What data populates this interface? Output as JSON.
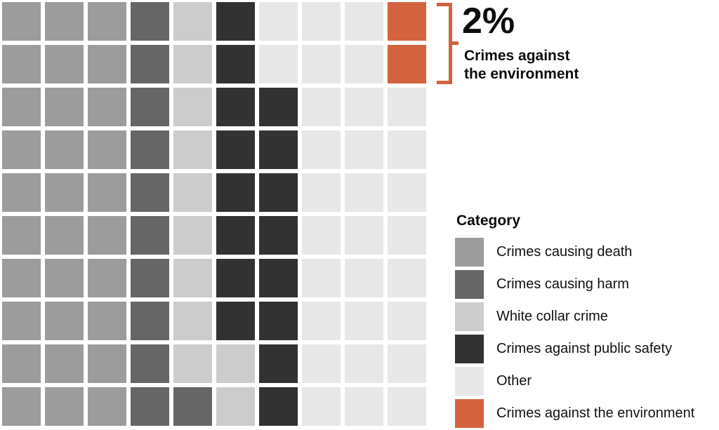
{
  "palette": {
    "crimes_causing_death": "#9c9c9c",
    "crimes_causing_harm": "#666666",
    "white_collar_crime": "#cccccc",
    "crimes_against_public_safety": "#323232",
    "other": "#e7e7e7",
    "crimes_against_environment": "#d3623f"
  },
  "accent_color": "#d3623f",
  "callout": {
    "value": "2%",
    "line1": "Crimes against",
    "line2": "the environment"
  },
  "legend": {
    "title": "Category",
    "items": [
      {
        "label": "Crimes causing death",
        "color_key": "crimes_causing_death"
      },
      {
        "label": "Crimes causing harm",
        "color_key": "crimes_causing_harm"
      },
      {
        "label": "White collar crime",
        "color_key": "white_collar_crime"
      },
      {
        "label": "Crimes against public safety",
        "color_key": "crimes_against_public_safety"
      },
      {
        "label": "Other",
        "color_key": "other"
      },
      {
        "label": "Crimes against the environment",
        "color_key": "crimes_against_environment"
      }
    ]
  },
  "grid": {
    "rows": [
      [
        "crimes_causing_death",
        "crimes_causing_death",
        "crimes_causing_death",
        "crimes_causing_harm",
        "white_collar_crime",
        "crimes_against_public_safety",
        "other",
        "other",
        "other",
        "crimes_against_environment"
      ],
      [
        "crimes_causing_death",
        "crimes_causing_death",
        "crimes_causing_death",
        "crimes_causing_harm",
        "white_collar_crime",
        "crimes_against_public_safety",
        "other",
        "other",
        "other",
        "crimes_against_environment"
      ],
      [
        "crimes_causing_death",
        "crimes_causing_death",
        "crimes_causing_death",
        "crimes_causing_harm",
        "white_collar_crime",
        "crimes_against_public_safety",
        "crimes_against_public_safety",
        "other",
        "other",
        "other"
      ],
      [
        "crimes_causing_death",
        "crimes_causing_death",
        "crimes_causing_death",
        "crimes_causing_harm",
        "white_collar_crime",
        "crimes_against_public_safety",
        "crimes_against_public_safety",
        "other",
        "other",
        "other"
      ],
      [
        "crimes_causing_death",
        "crimes_causing_death",
        "crimes_causing_death",
        "crimes_causing_harm",
        "white_collar_crime",
        "crimes_against_public_safety",
        "crimes_against_public_safety",
        "other",
        "other",
        "other"
      ],
      [
        "crimes_causing_death",
        "crimes_causing_death",
        "crimes_causing_death",
        "crimes_causing_harm",
        "white_collar_crime",
        "crimes_against_public_safety",
        "crimes_against_public_safety",
        "other",
        "other",
        "other"
      ],
      [
        "crimes_causing_death",
        "crimes_causing_death",
        "crimes_causing_death",
        "crimes_causing_harm",
        "white_collar_crime",
        "crimes_against_public_safety",
        "crimes_against_public_safety",
        "other",
        "other",
        "other"
      ],
      [
        "crimes_causing_death",
        "crimes_causing_death",
        "crimes_causing_death",
        "crimes_causing_harm",
        "white_collar_crime",
        "crimes_against_public_safety",
        "crimes_against_public_safety",
        "other",
        "other",
        "other"
      ],
      [
        "crimes_causing_death",
        "crimes_causing_death",
        "crimes_causing_death",
        "crimes_causing_harm",
        "white_collar_crime",
        "white_collar_crime",
        "crimes_against_public_safety",
        "other",
        "other",
        "other"
      ],
      [
        "crimes_causing_death",
        "crimes_causing_death",
        "crimes_causing_death",
        "crimes_causing_harm",
        "crimes_causing_harm",
        "white_collar_crime",
        "crimes_against_public_safety",
        "other",
        "other",
        "other"
      ]
    ]
  },
  "chart_data": {
    "type": "waffle",
    "grid_size": "10x10",
    "unit": "1 square = 1%",
    "title": "",
    "categories": [
      "Crimes causing death",
      "Crimes causing harm",
      "White collar crime",
      "Crimes against public safety",
      "Other",
      "Crimes against the environment"
    ],
    "values": [
      30,
      11,
      11,
      16,
      30,
      2
    ],
    "colors": [
      "#9c9c9c",
      "#666666",
      "#cccccc",
      "#323232",
      "#e7e7e7",
      "#d3623f"
    ],
    "legend_title": "Category",
    "legend_position": "right",
    "annotation": {
      "value": "2%",
      "label": "Crimes against the environment",
      "highlighted_cells": 2
    }
  }
}
